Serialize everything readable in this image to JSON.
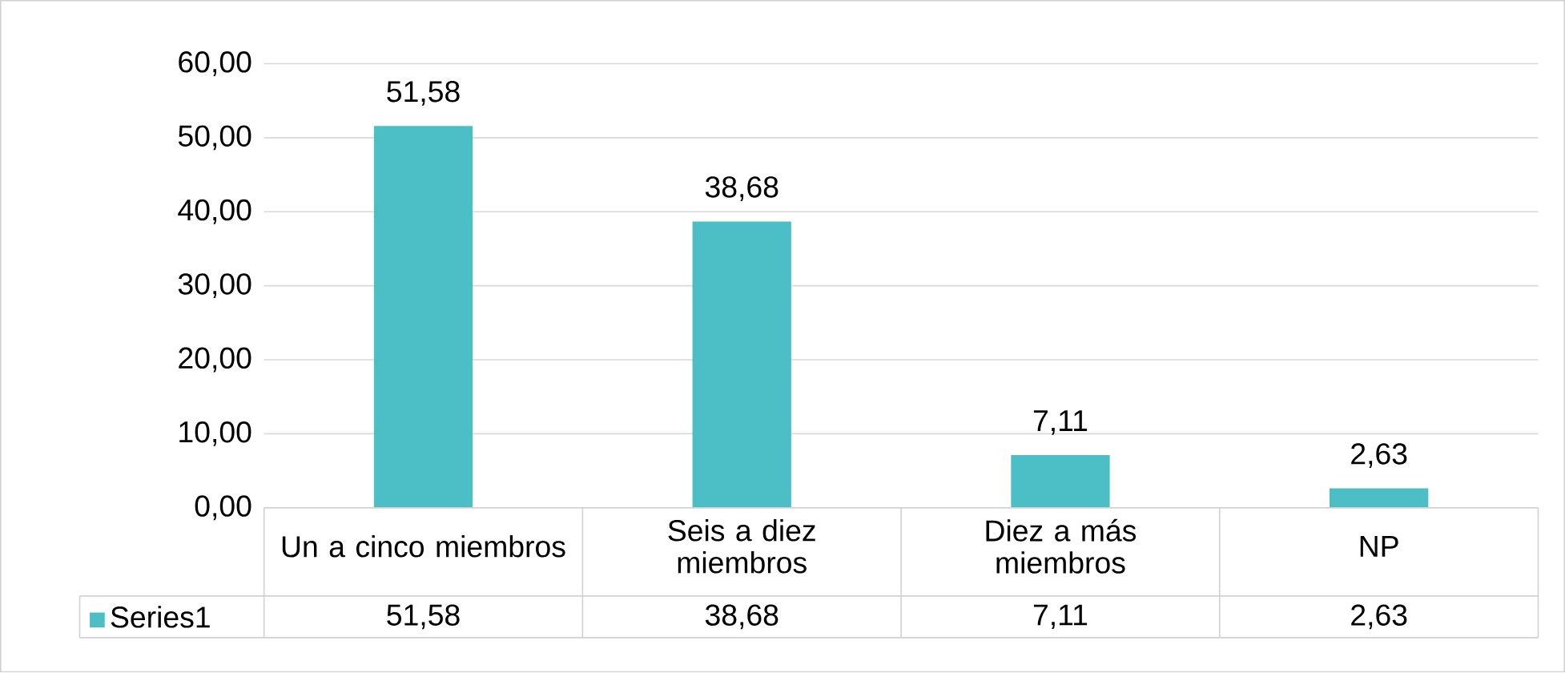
{
  "chart_data": {
    "type": "bar",
    "categories": [
      "Un  a cinco miembros",
      "Seis a diez miembros",
      "Diez a más miembros",
      "NP"
    ],
    "series": [
      {
        "name": "Series1",
        "color": "#4bbec6",
        "values": [
          51.58,
          38.68,
          7.11,
          2.63
        ],
        "value_labels": [
          "51,58",
          "38,68",
          "7,11",
          "2,63"
        ]
      }
    ],
    "ylim": [
      0,
      60
    ],
    "yticks": [
      {
        "value": 0,
        "label": "0,00"
      },
      {
        "value": 10,
        "label": "10,00"
      },
      {
        "value": 20,
        "label": "20,00"
      },
      {
        "value": 30,
        "label": "30,00"
      },
      {
        "value": 40,
        "label": "40,00"
      },
      {
        "value": 50,
        "label": "50,00"
      },
      {
        "value": 60,
        "label": "60,00"
      }
    ],
    "grid": "y",
    "legend": "bottom left"
  }
}
